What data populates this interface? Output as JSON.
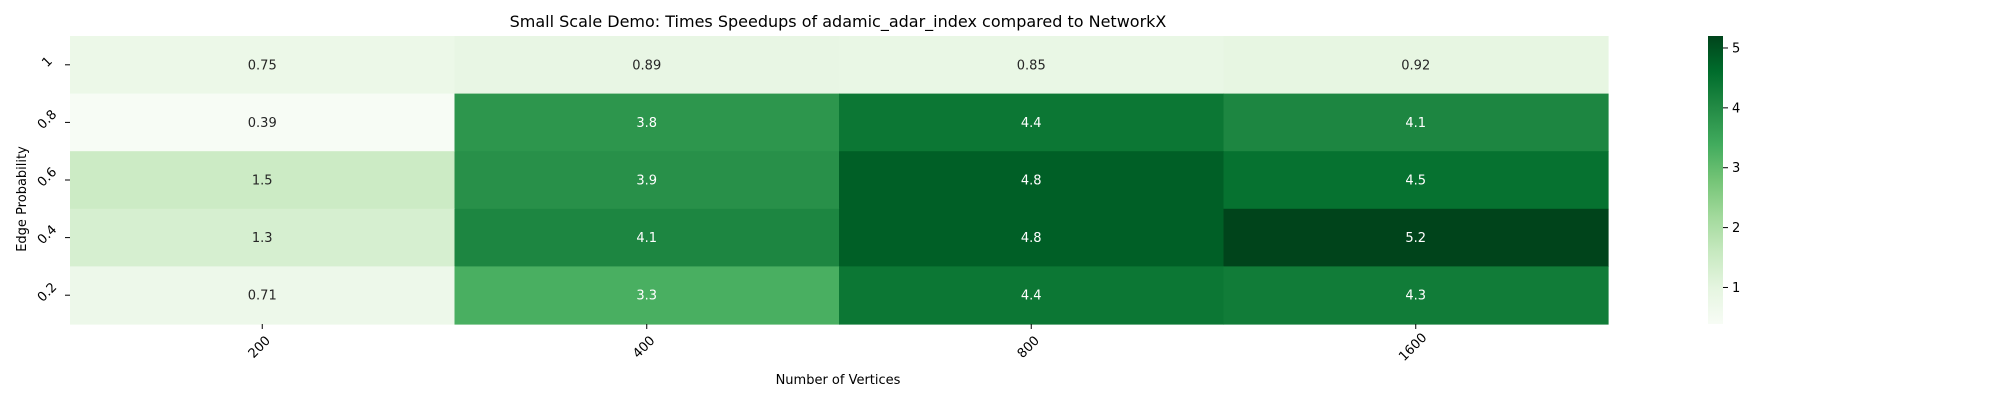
{
  "chart_data": {
    "type": "heatmap",
    "title": "Small Scale Demo: Times Speedups of adamic_adar_index compared to NetworkX",
    "xlabel": "Number of Vertices",
    "ylabel": "Edge Probability",
    "x_categories": [
      "200",
      "400",
      "800",
      "1600"
    ],
    "y_categories": [
      "1",
      "0.8",
      "0.6",
      "0.4",
      "0.2"
    ],
    "values": [
      [
        0.75,
        0.89,
        0.85,
        0.92
      ],
      [
        0.39,
        3.8,
        4.4,
        4.1
      ],
      [
        1.5,
        3.9,
        4.8,
        4.5
      ],
      [
        1.3,
        4.1,
        4.8,
        5.2
      ],
      [
        0.71,
        3.3,
        4.4,
        4.3
      ]
    ],
    "labels": [
      [
        "0.75",
        "0.89",
        "0.85",
        "0.92"
      ],
      [
        "0.39",
        "3.8",
        "4.4",
        "4.1"
      ],
      [
        "1.5",
        "3.9",
        "4.8",
        "4.5"
      ],
      [
        "1.3",
        "4.1",
        "4.8",
        "5.2"
      ],
      [
        "0.71",
        "3.3",
        "4.4",
        "4.3"
      ]
    ],
    "colormap": "Greens",
    "vmin": 0.39,
    "vmax": 5.2,
    "colorbar": {
      "ticks": [
        1,
        2,
        3,
        4,
        5
      ],
      "tick_labels": [
        "1",
        "2",
        "3",
        "4",
        "5"
      ],
      "placement": "right"
    },
    "grid": false
  }
}
